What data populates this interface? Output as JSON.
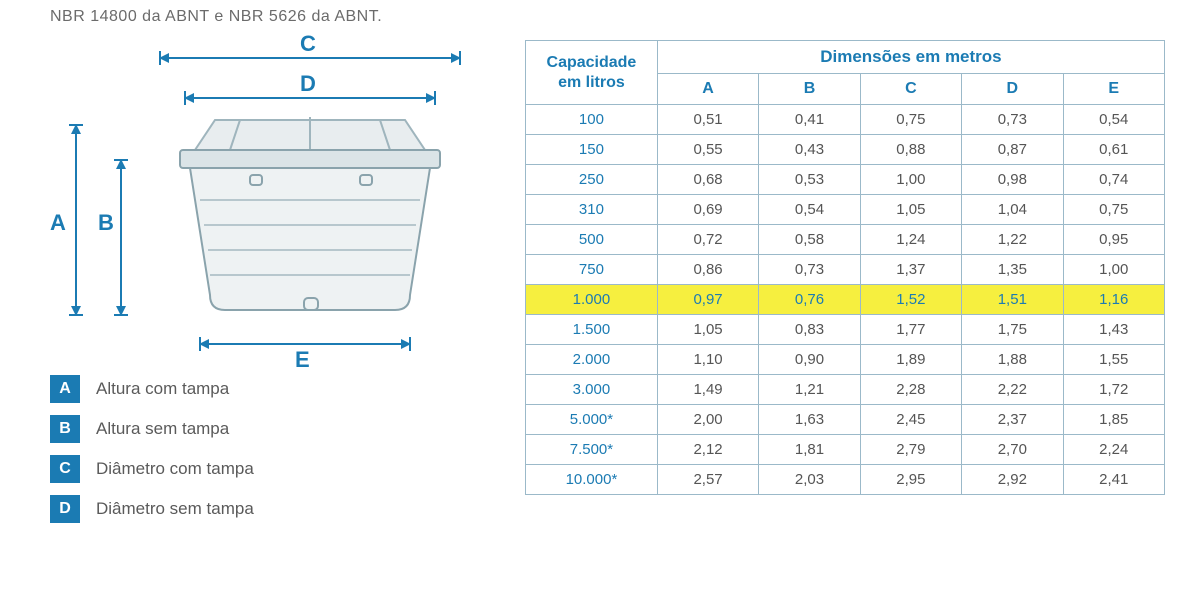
{
  "header_text": "NBR 14800 da ABNT e NBR 5626 da ABNT.",
  "colors": {
    "brand_blue": "#1b7bb3",
    "table_border": "#9bb9c9",
    "text_gray": "#5a5a5a",
    "highlight_row": "#f6ef3f",
    "background": "#ffffff"
  },
  "diagram": {
    "labels": {
      "A": "A",
      "B": "B",
      "C": "C",
      "D": "D",
      "E": "E"
    }
  },
  "legend": [
    {
      "key": "A",
      "text": "Altura com tampa"
    },
    {
      "key": "B",
      "text": "Altura sem tampa"
    },
    {
      "key": "C",
      "text": "Diâmetro com tampa"
    },
    {
      "key": "D",
      "text": "Diâmetro sem tampa"
    }
  ],
  "table": {
    "caption_capacity_line1": "Capacidade",
    "caption_capacity_line2": "em litros",
    "caption_dimensions": "Dimensões em metros",
    "columns": [
      "A",
      "B",
      "C",
      "D",
      "E"
    ],
    "highlight_capacity": "1.000",
    "rows": [
      {
        "capacity": "100",
        "v": [
          "0,51",
          "0,41",
          "0,75",
          "0,73",
          "0,54"
        ]
      },
      {
        "capacity": "150",
        "v": [
          "0,55",
          "0,43",
          "0,88",
          "0,87",
          "0,61"
        ]
      },
      {
        "capacity": "250",
        "v": [
          "0,68",
          "0,53",
          "1,00",
          "0,98",
          "0,74"
        ]
      },
      {
        "capacity": "310",
        "v": [
          "0,69",
          "0,54",
          "1,05",
          "1,04",
          "0,75"
        ]
      },
      {
        "capacity": "500",
        "v": [
          "0,72",
          "0,58",
          "1,24",
          "1,22",
          "0,95"
        ]
      },
      {
        "capacity": "750",
        "v": [
          "0,86",
          "0,73",
          "1,37",
          "1,35",
          "1,00"
        ]
      },
      {
        "capacity": "1.000",
        "v": [
          "0,97",
          "0,76",
          "1,52",
          "1,51",
          "1,16"
        ]
      },
      {
        "capacity": "1.500",
        "v": [
          "1,05",
          "0,83",
          "1,77",
          "1,75",
          "1,43"
        ]
      },
      {
        "capacity": "2.000",
        "v": [
          "1,10",
          "0,90",
          "1,89",
          "1,88",
          "1,55"
        ]
      },
      {
        "capacity": "3.000",
        "v": [
          "1,49",
          "1,21",
          "2,28",
          "2,22",
          "1,72"
        ]
      },
      {
        "capacity": "5.000*",
        "v": [
          "2,00",
          "1,63",
          "2,45",
          "2,37",
          "1,85"
        ]
      },
      {
        "capacity": "7.500*",
        "v": [
          "2,12",
          "1,81",
          "2,79",
          "2,70",
          "2,24"
        ]
      },
      {
        "capacity": "10.000*",
        "v": [
          "2,57",
          "2,03",
          "2,95",
          "2,92",
          "2,41"
        ]
      }
    ]
  }
}
